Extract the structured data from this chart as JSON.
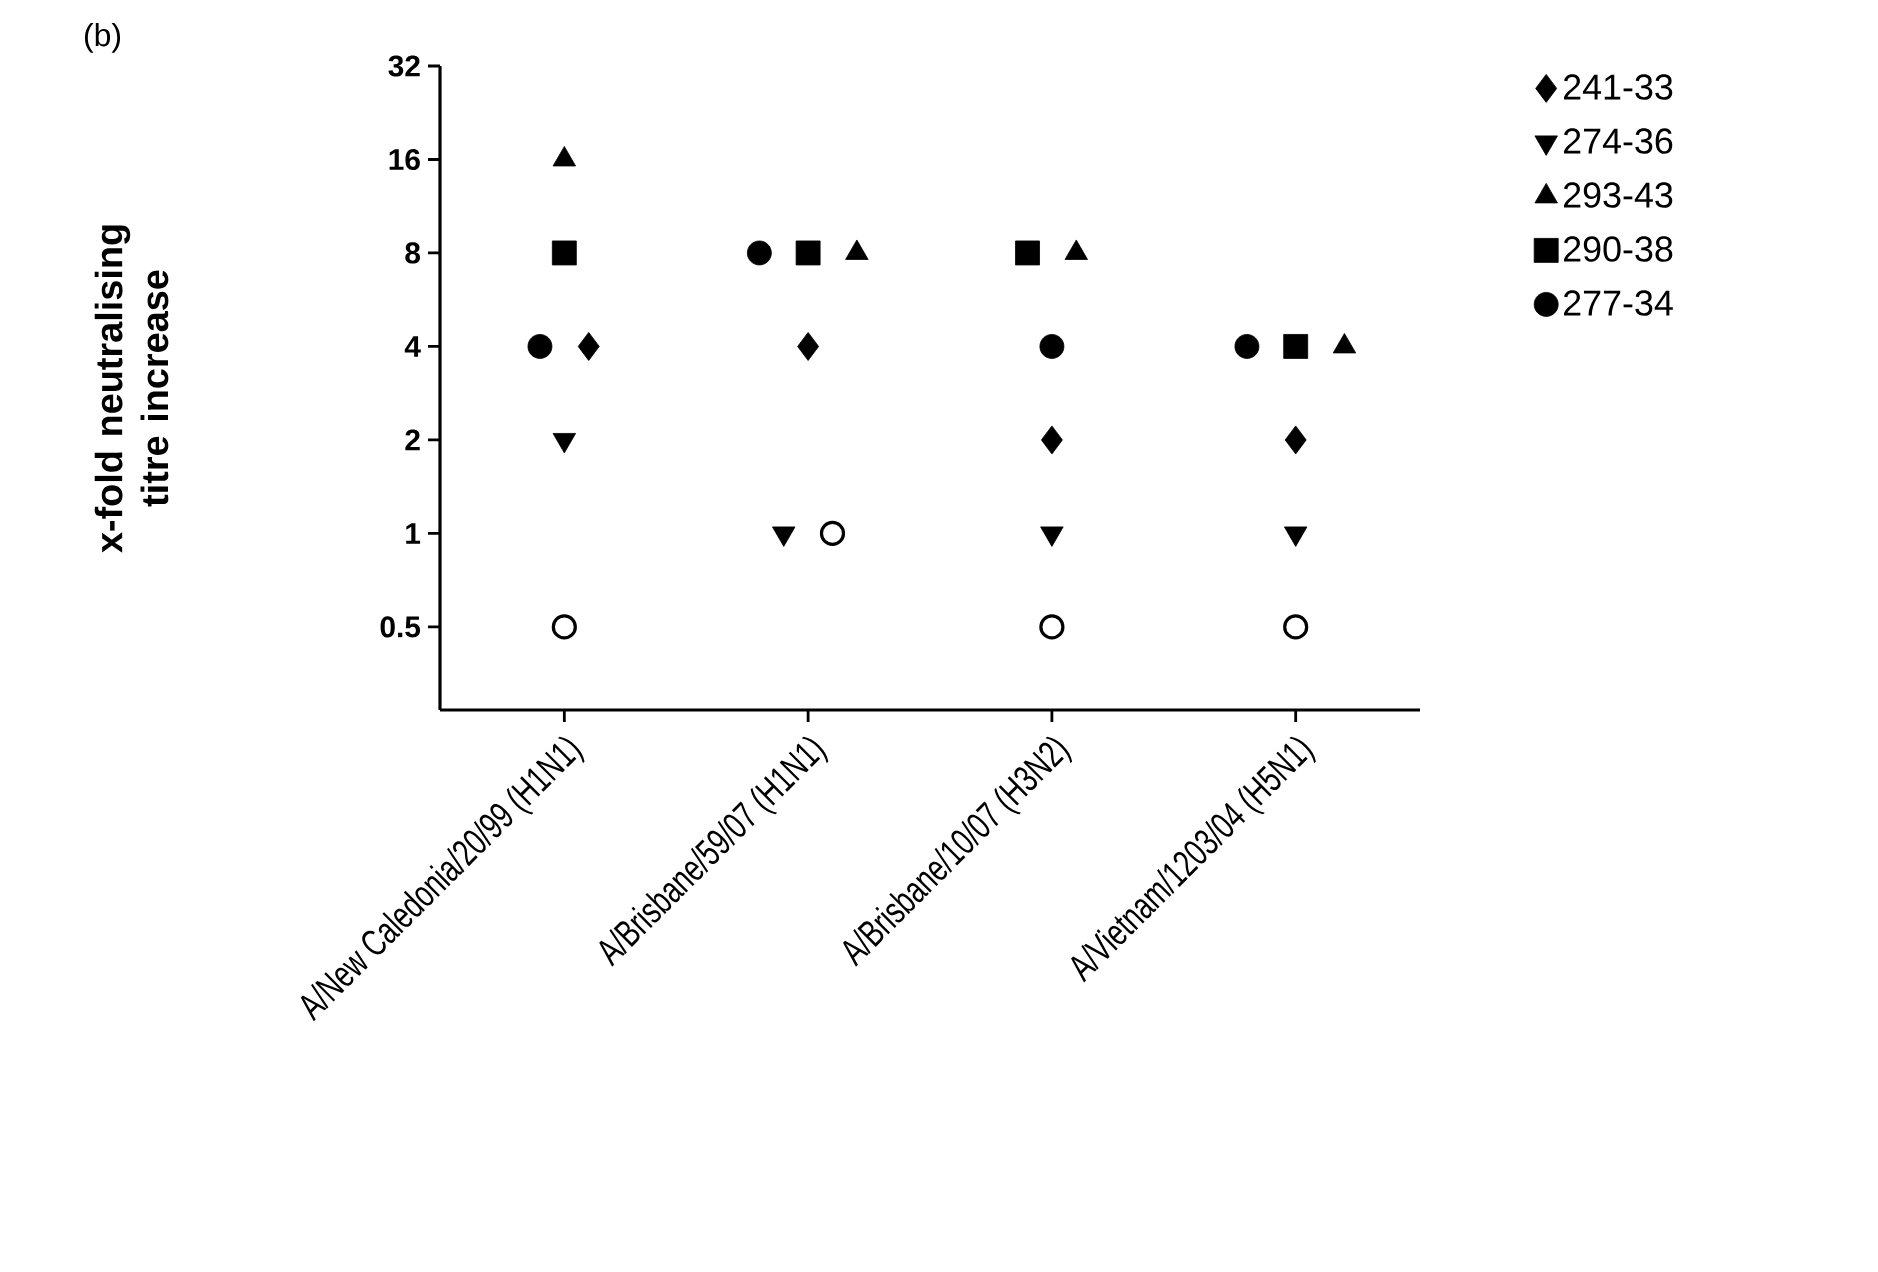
{
  "chart_data": {
    "type": "scatter",
    "title": "(b)",
    "ylabel": "x-fold neutralising titre increase",
    "categories": [
      "A/New Caledonia/20/99 (H1N1)",
      "A/Brisbane/59/07 (H1N1)",
      "A/Brisbane/10/07 (H3N2)",
      "A/Vietnam/1203/04 (H5N1)"
    ],
    "log": "y",
    "ylim": [
      0.27,
      32
    ],
    "yticks": [
      0.5,
      1,
      2,
      4,
      8,
      16,
      32
    ],
    "grid": false,
    "legend": "top right",
    "series": [
      {
        "color": "#000000",
        "marker": "circle-open",
        "values": [
          0.5,
          1,
          0.5,
          0.5
        ]
      },
      {
        "name": "241-33",
        "color": "#000000",
        "marker": "diamond",
        "values": [
          4,
          4,
          2,
          2
        ]
      },
      {
        "name": "274-36",
        "color": "#000000",
        "marker": "triangle-down",
        "values": [
          2,
          1,
          1,
          1
        ]
      },
      {
        "name": "293-43",
        "color": "#000000",
        "marker": "triangle",
        "values": [
          16,
          8,
          8,
          4
        ]
      },
      {
        "name": "290-38",
        "color": "#000000",
        "marker": "square",
        "values": [
          8,
          8,
          8,
          4
        ]
      },
      {
        "name": "277-34",
        "color": "#000000",
        "marker": "circle",
        "values": [
          4,
          8,
          4,
          4
        ]
      }
    ]
  }
}
